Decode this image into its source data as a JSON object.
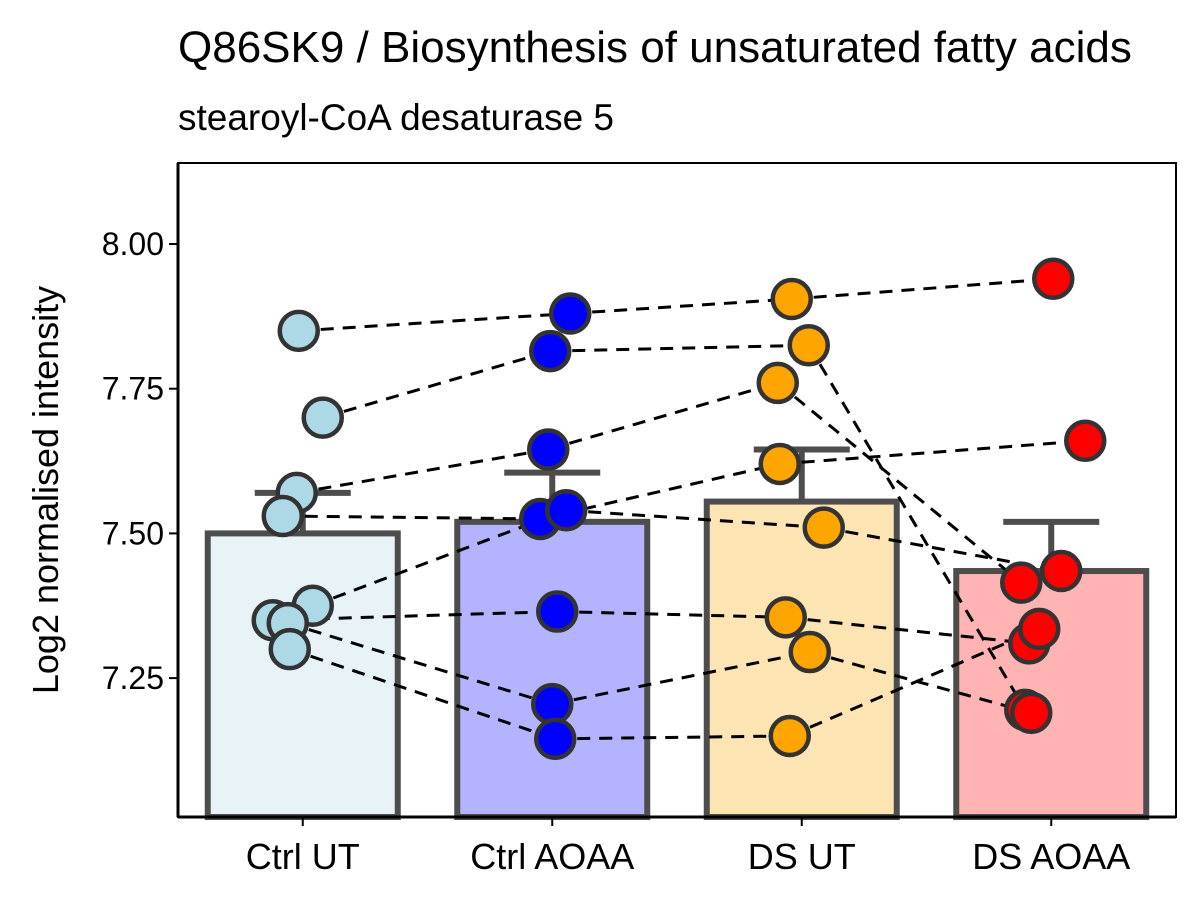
{
  "chart_data": {
    "type": "bar",
    "title": "Q86SK9 / Biosynthesis of unsaturated fatty acids",
    "subtitle": "stearoyl-CoA desaturase 5",
    "xlabel": "",
    "ylabel": "Log2 normalised intensity",
    "ylim": [
      7.01,
      8.14
    ],
    "y_ticks": [
      7.25,
      7.5,
      7.75,
      8.0
    ],
    "y_tick_labels": [
      "7.25",
      "7.50",
      "7.75",
      "8.00"
    ],
    "categories": [
      "Ctrl UT",
      "Ctrl AOAA",
      "DS UT",
      "DS AOAA"
    ],
    "bar_fill_colors": [
      "#e8f3f8",
      "#b3b3ff",
      "#fde4b3",
      "#ffb3b3"
    ],
    "point_colors": [
      "#add8e6",
      "#0000ff",
      "#ffa500",
      "#ff0000"
    ],
    "bar_outline_color": "#4d4d4d",
    "means": [
      7.5,
      7.52,
      7.555,
      7.435
    ],
    "error_upper": [
      7.57,
      7.605,
      7.645,
      7.52
    ],
    "series": [
      {
        "values": [
          7.85,
          7.88,
          7.905,
          7.94
        ]
      },
      {
        "values": [
          7.7,
          7.815,
          7.825,
          7.195
        ]
      },
      {
        "values": [
          7.57,
          7.645,
          7.76,
          7.415
        ]
      },
      {
        "values": [
          7.53,
          7.525,
          7.62,
          7.66
        ]
      },
      {
        "values": [
          7.375,
          7.54,
          7.51,
          7.435
        ]
      },
      {
        "values": [
          7.35,
          7.365,
          7.355,
          7.31
        ]
      },
      {
        "values": [
          7.345,
          7.205,
          7.295,
          7.19
        ]
      },
      {
        "values": [
          7.3,
          7.145,
          7.15,
          7.335
        ]
      }
    ],
    "grid": false,
    "legend": "none"
  }
}
